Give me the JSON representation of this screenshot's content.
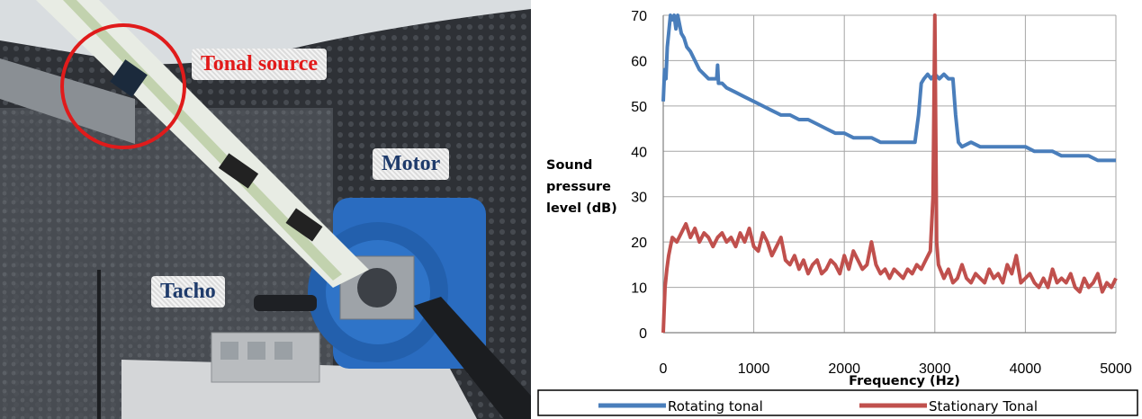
{
  "photo": {
    "labels": {
      "tonal_source": "Tonal source",
      "motor": "Motor",
      "tacho": "Tacho"
    },
    "colors": {
      "highlight_circle": "#e01b1b",
      "motor_body": "#2a6cc0"
    }
  },
  "chart_data": {
    "type": "line",
    "xlabel": "Frequency (Hz)",
    "ylabel": [
      "Sound",
      "pressure",
      "level (dB)"
    ],
    "xlim": [
      0,
      5000
    ],
    "ylim": [
      0,
      70
    ],
    "x_ticks": [
      0,
      1000,
      2000,
      3000,
      4000,
      5000
    ],
    "y_ticks": [
      0,
      10,
      20,
      30,
      40,
      50,
      60,
      70
    ],
    "grid": true,
    "legend_position": "bottom",
    "series": [
      {
        "name": "Rotating tonal",
        "color": "#4a7ebb",
        "x": [
          0,
          15,
          30,
          45,
          60,
          80,
          100,
          120,
          140,
          160,
          180,
          200,
          230,
          260,
          300,
          350,
          400,
          450,
          500,
          550,
          590,
          600,
          610,
          650,
          700,
          800,
          900,
          1000,
          1100,
          1200,
          1300,
          1400,
          1500,
          1600,
          1700,
          1800,
          1900,
          2000,
          2100,
          2200,
          2300,
          2400,
          2500,
          2600,
          2700,
          2780,
          2820,
          2850,
          2880,
          2920,
          2960,
          3000,
          3050,
          3100,
          3150,
          3200,
          3230,
          3260,
          3300,
          3400,
          3500,
          3600,
          3700,
          3800,
          3900,
          4000,
          4100,
          4200,
          4300,
          4400,
          4500,
          4600,
          4700,
          4800,
          4900,
          5000
        ],
        "y": [
          51,
          58,
          56,
          63,
          66,
          70,
          69,
          70,
          67,
          70,
          68,
          66,
          65,
          63,
          62,
          60,
          58,
          57,
          56,
          56,
          56,
          59,
          55,
          55,
          54,
          53,
          52,
          51,
          50,
          49,
          48,
          48,
          47,
          47,
          46,
          45,
          44,
          44,
          43,
          43,
          43,
          42,
          42,
          42,
          42,
          42,
          48,
          55,
          56,
          57,
          56,
          57,
          56,
          57,
          56,
          56,
          48,
          42,
          41,
          42,
          41,
          41,
          41,
          41,
          41,
          41,
          40,
          40,
          40,
          39,
          39,
          39,
          39,
          38,
          38,
          38
        ]
      },
      {
        "name": "Stationary Tonal",
        "color": "#c0504d",
        "x": [
          0,
          20,
          40,
          60,
          80,
          100,
          150,
          200,
          250,
          300,
          350,
          400,
          450,
          500,
          550,
          600,
          650,
          700,
          750,
          800,
          850,
          900,
          950,
          1000,
          1050,
          1100,
          1150,
          1200,
          1250,
          1300,
          1350,
          1400,
          1450,
          1500,
          1550,
          1600,
          1650,
          1700,
          1750,
          1800,
          1850,
          1900,
          1950,
          2000,
          2050,
          2100,
          2150,
          2200,
          2250,
          2300,
          2350,
          2400,
          2450,
          2500,
          2550,
          2600,
          2650,
          2700,
          2750,
          2800,
          2850,
          2900,
          2950,
          2980,
          3000,
          3020,
          3040,
          3060,
          3100,
          3150,
          3200,
          3250,
          3300,
          3350,
          3400,
          3450,
          3500,
          3550,
          3600,
          3650,
          3700,
          3750,
          3800,
          3850,
          3900,
          3950,
          4000,
          4050,
          4100,
          4150,
          4200,
          4250,
          4300,
          4350,
          4400,
          4450,
          4500,
          4550,
          4600,
          4650,
          4700,
          4750,
          4800,
          4850,
          4900,
          4950,
          5000
        ],
        "y": [
          0,
          10,
          14,
          17,
          19,
          21,
          20,
          22,
          24,
          21,
          23,
          20,
          22,
          21,
          19,
          21,
          22,
          20,
          21,
          19,
          22,
          20,
          23,
          19,
          18,
          22,
          20,
          17,
          19,
          21,
          16,
          15,
          17,
          14,
          16,
          13,
          15,
          16,
          13,
          14,
          16,
          15,
          13,
          17,
          14,
          18,
          16,
          14,
          15,
          20,
          15,
          13,
          14,
          12,
          14,
          13,
          12,
          14,
          13,
          15,
          14,
          16,
          18,
          30,
          70,
          20,
          15,
          14,
          12,
          14,
          11,
          12,
          15,
          12,
          11,
          13,
          12,
          11,
          14,
          12,
          13,
          11,
          15,
          13,
          17,
          11,
          12,
          13,
          11,
          10,
          12,
          10,
          14,
          11,
          12,
          11,
          13,
          10,
          9,
          12,
          10,
          11,
          13,
          9,
          11,
          10,
          12
        ]
      }
    ]
  }
}
